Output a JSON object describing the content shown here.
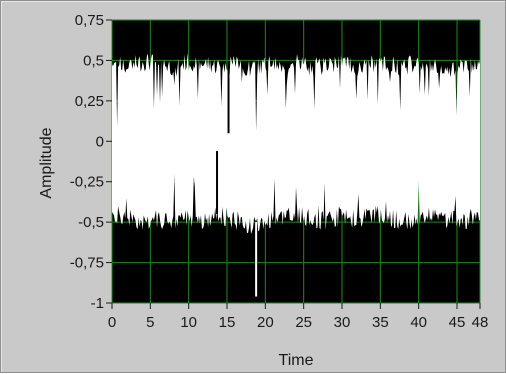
{
  "chart_data": {
    "type": "area",
    "title": "",
    "xlabel": "Time",
    "ylabel": "Amplitude",
    "xlim": [
      0,
      48
    ],
    "ylim": [
      -1,
      0.75
    ],
    "x_ticks": [
      0,
      5,
      10,
      15,
      20,
      25,
      30,
      35,
      40,
      45,
      48
    ],
    "x_tick_labels": [
      "0",
      "5",
      "10",
      "15",
      "20",
      "25",
      "30",
      "35",
      "40",
      "45",
      "48"
    ],
    "y_ticks": [
      0.75,
      0.5,
      0.25,
      0,
      -0.25,
      -0.5,
      -0.75,
      -1
    ],
    "y_tick_labels": [
      "0,75",
      "0,5",
      "0,25",
      "0",
      "-0,25",
      "-0,5",
      "-0,75",
      "-1"
    ],
    "grid": true,
    "colors": {
      "plot_background": "#000000",
      "signal_envelope_fill": "#ffffff",
      "grid": "#1f8a1f",
      "frame": "#c9c9c9"
    },
    "series": [
      {
        "values_description_x": [
          0,
          2,
          4,
          6,
          8,
          10,
          12,
          14,
          16,
          18,
          20,
          22,
          24,
          26,
          28,
          30,
          32,
          34,
          36,
          38,
          40,
          42,
          44,
          46,
          48
        ],
        "upper_envelope": [
          0.48,
          0.46,
          0.5,
          0.49,
          0.47,
          0.5,
          0.49,
          0.47,
          0.48,
          0.45,
          0.48,
          0.47,
          0.49,
          0.46,
          0.48,
          0.5,
          0.47,
          0.49,
          0.48,
          0.47,
          0.49,
          0.48,
          0.46,
          0.47,
          0.47
        ],
        "lower_envelope": [
          -0.45,
          -0.48,
          -0.5,
          -0.49,
          -0.5,
          -0.47,
          -0.5,
          -0.46,
          -0.49,
          -0.53,
          -0.5,
          -0.48,
          -0.46,
          -0.48,
          -0.5,
          -0.47,
          -0.49,
          -0.46,
          -0.48,
          -0.5,
          -0.48,
          -0.47,
          -0.49,
          -0.5,
          -0.44
        ]
      }
    ],
    "annotations": [
      {
        "x": 13.7,
        "y": -0.06,
        "note": "upward spike"
      },
      {
        "x": 18.8,
        "y": -0.96,
        "note": "downward spike"
      },
      {
        "x": 15.2,
        "y": 0.05,
        "note": "downward spike"
      }
    ]
  }
}
